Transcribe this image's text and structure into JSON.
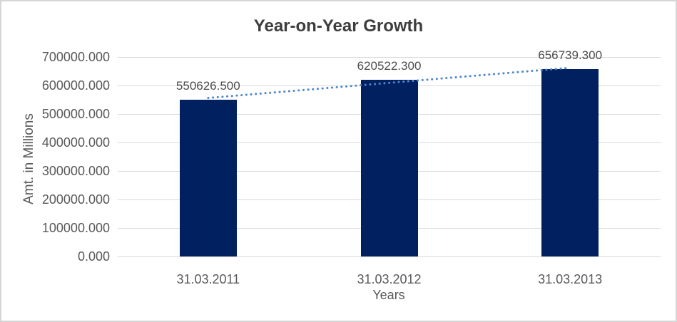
{
  "chart_data": {
    "type": "bar",
    "title": "Year-on-Year Growth",
    "xlabel": "Years",
    "ylabel": "Amt. in Millions",
    "categories": [
      "31.03.2011",
      "31.03.2012",
      "31.03.2013"
    ],
    "values": [
      550626.5,
      620522.3,
      656739.3
    ],
    "value_labels": [
      "550626.500",
      "620522.300",
      "656739.300"
    ],
    "ylim": [
      0,
      700000
    ],
    "ytick_step": 100000,
    "ytick_labels": [
      "0.000",
      "100000.000",
      "200000.000",
      "300000.000",
      "400000.000",
      "500000.000",
      "600000.000",
      "700000.000"
    ],
    "grid": true,
    "legend": "none",
    "bar_color": "#002060",
    "gridline_color": "#d9d9d9",
    "title_color": "#3d3d3d",
    "label_color": "#595959",
    "trendline": {
      "type": "linear",
      "style": "dotted",
      "color": "#4b87ce"
    }
  }
}
